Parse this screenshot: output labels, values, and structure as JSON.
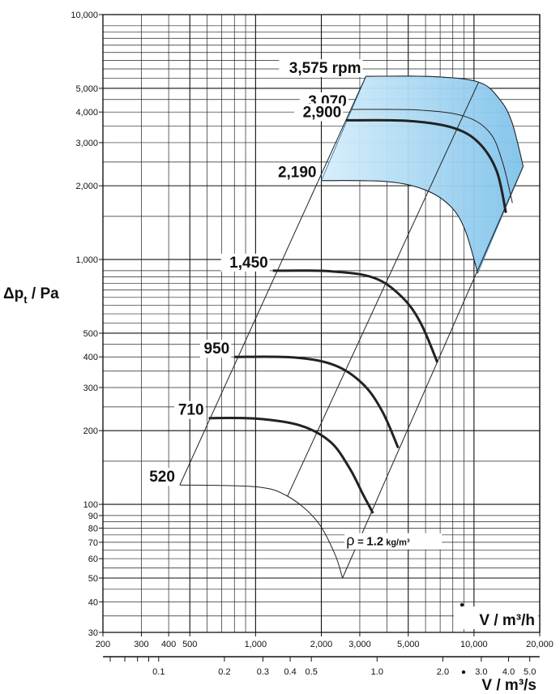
{
  "chart_data": {
    "type": "line",
    "x_scale": "log",
    "y_scale": "log",
    "xlim": [
      200,
      20000
    ],
    "ylim": [
      30,
      10000
    ],
    "ylabel": {
      "main": "Δp",
      "sub": "t",
      "rest": " / Pa"
    },
    "xlabel": "V / m³/h",
    "x2label": "V / m³/s",
    "x_ticks": [
      {
        "v": 200,
        "label": "200"
      },
      {
        "v": 300,
        "label": "300"
      },
      {
        "v": 400,
        "label": "400"
      },
      {
        "v": 500,
        "label": "500"
      },
      {
        "v": 1000,
        "label": "1,000"
      },
      {
        "v": 2000,
        "label": "2,000"
      },
      {
        "v": 3000,
        "label": "3,000"
      },
      {
        "v": 5000,
        "label": "5,000"
      },
      {
        "v": 10000,
        "label": "10,000"
      },
      {
        "v": 20000,
        "label": "20,000"
      }
    ],
    "y_ticks": [
      {
        "v": 30,
        "label": "30"
      },
      {
        "v": 40,
        "label": "40"
      },
      {
        "v": 50,
        "label": "50"
      },
      {
        "v": 60,
        "label": "60"
      },
      {
        "v": 70,
        "label": "70"
      },
      {
        "v": 80,
        "label": "80"
      },
      {
        "v": 90,
        "label": "90"
      },
      {
        "v": 100,
        "label": "100"
      },
      {
        "v": 200,
        "label": "200"
      },
      {
        "v": 300,
        "label": "300"
      },
      {
        "v": 400,
        "label": "400"
      },
      {
        "v": 500,
        "label": "500"
      },
      {
        "v": 1000,
        "label": "1,000"
      },
      {
        "v": 2000,
        "label": "2,000"
      },
      {
        "v": 3000,
        "label": "3,000"
      },
      {
        "v": 4000,
        "label": "4,000"
      },
      {
        "v": 5000,
        "label": "5,000"
      },
      {
        "v": 10000,
        "label": "10,000"
      }
    ],
    "x2_ticks": [
      {
        "v": 0.1,
        "label": "0.1"
      },
      {
        "v": 0.2,
        "label": "0.2"
      },
      {
        "v": 0.3,
        "label": "0.3"
      },
      {
        "v": 0.4,
        "label": "0.4"
      },
      {
        "v": 0.5,
        "label": "0.5"
      },
      {
        "v": 1.0,
        "label": "1.0"
      },
      {
        "v": 2.0,
        "label": "2.0"
      },
      {
        "v": 3.0,
        "label": "3.0"
      },
      {
        "v": 4.0,
        "label": "4.0"
      },
      {
        "v": 5.0,
        "label": "5.0"
      }
    ],
    "density_note": {
      "symbol": "ρ",
      "eq": " = ",
      "value": "1.2",
      "unit": " kg/m³"
    },
    "shaded_region_color": "#8ccbee",
    "series": [
      {
        "name": "520",
        "bold": false,
        "points": [
          [
            450,
            120
          ],
          [
            1000,
            118
          ],
          [
            1400,
            108
          ],
          [
            1900,
            86
          ],
          [
            2300,
            63
          ],
          [
            2500,
            50
          ]
        ]
      },
      {
        "name": "710",
        "bold": true,
        "points": [
          [
            610,
            225
          ],
          [
            1000,
            224
          ],
          [
            1600,
            210
          ],
          [
            2200,
            180
          ],
          [
            2700,
            140
          ],
          [
            3100,
            110
          ],
          [
            3450,
            92
          ]
        ]
      },
      {
        "name": "950",
        "bold": true,
        "points": [
          [
            800,
            400
          ],
          [
            1500,
            398
          ],
          [
            2300,
            370
          ],
          [
            3100,
            310
          ],
          [
            3800,
            240
          ],
          [
            4500,
            170
          ]
        ]
      },
      {
        "name": "1,450",
        "bold": true,
        "points": [
          [
            1200,
            900
          ],
          [
            2200,
            895
          ],
          [
            3500,
            840
          ],
          [
            4700,
            700
          ],
          [
            5700,
            550
          ],
          [
            6800,
            380
          ]
        ]
      },
      {
        "name": "2,190",
        "bold": false,
        "points": [
          [
            2000,
            2100
          ],
          [
            4000,
            2080
          ],
          [
            6000,
            1920
          ],
          [
            7800,
            1650
          ],
          [
            9100,
            1320
          ],
          [
            10400,
            880
          ]
        ]
      },
      {
        "name": "2,900",
        "bold": true,
        "points": [
          [
            2600,
            3700
          ],
          [
            5000,
            3680
          ],
          [
            8000,
            3450
          ],
          [
            10500,
            3000
          ],
          [
            12700,
            2300
          ],
          [
            14000,
            1550
          ]
        ]
      },
      {
        "name": "3,070",
        "bold": false,
        "points": [
          [
            2750,
            4100
          ],
          [
            5500,
            4080
          ],
          [
            9000,
            3850
          ],
          [
            11800,
            3300
          ],
          [
            13500,
            2500
          ],
          [
            15000,
            1700
          ]
        ]
      },
      {
        "name": "3,575 rpm",
        "bold": false,
        "points": [
          [
            3200,
            5600
          ],
          [
            6500,
            5580
          ],
          [
            10500,
            5300
          ],
          [
            13000,
            4550
          ],
          [
            14900,
            3650
          ],
          [
            16800,
            2400
          ]
        ]
      }
    ],
    "system_lines": [
      [
        [
          450,
          120
        ],
        [
          3200,
          5600
        ]
      ],
      [
        [
          1400,
          108
        ],
        [
          10500,
          5300
        ]
      ],
      [
        [
          2500,
          50
        ],
        [
          16800,
          2400
        ]
      ]
    ],
    "rpm_label_pos": [
      {
        "name": "3,575 rpm",
        "x": 3200,
        "y": 5600
      },
      {
        "name": "3,070",
        "x": 2750,
        "y": 4100
      },
      {
        "name": "2,900",
        "x": 2600,
        "y": 3700
      },
      {
        "name": "2,190",
        "x": 2000,
        "y": 2100
      },
      {
        "name": "1,450",
        "x": 1200,
        "y": 900
      },
      {
        "name": "950",
        "x": 800,
        "y": 400
      },
      {
        "name": "710",
        "x": 610,
        "y": 225
      },
      {
        "name": "520",
        "x": 450,
        "y": 120
      }
    ]
  }
}
